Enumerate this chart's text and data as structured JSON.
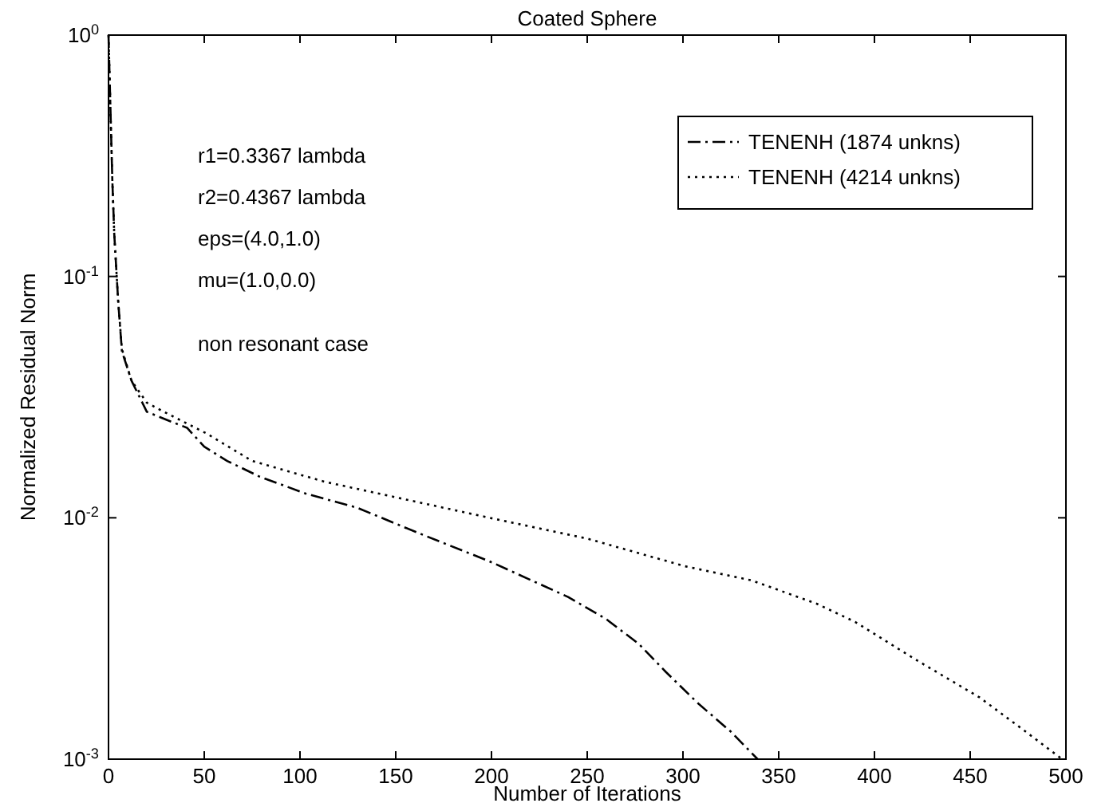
{
  "chart_data": {
    "type": "line",
    "title": "Coated Sphere",
    "xlabel": "Number of Iterations",
    "ylabel": "Normalized Residual Norm",
    "log": "y",
    "xlim": [
      0,
      500
    ],
    "xticks": [
      0,
      50,
      100,
      150,
      200,
      250,
      300,
      350,
      400,
      450,
      500
    ],
    "ylim": [
      0.001,
      1
    ],
    "yticks": [
      {
        "value": 1,
        "label": "10$^{0}$"
      },
      {
        "value": 0.1,
        "label": "10$^{-1}$"
      },
      {
        "value": 0.01,
        "label": "10$^{-2}$"
      },
      {
        "value": 0.001,
        "label": "10$^{-3}$"
      }
    ],
    "grid": false,
    "legend": "top right",
    "marker": "none",
    "annotations": [
      "r1=0.3367 lambda",
      "r2=0.4367 lambda",
      "eps=(4.0,1.0)",
      "mu=(1.0,0.0)",
      "non resonant case"
    ],
    "series": [
      {
        "name": "TENENH (1874 unkns)",
        "color": "#000000",
        "line_style": "dashdot",
        "x": [
          0,
          1,
          2,
          3,
          5,
          7,
          12,
          20,
          34,
          41,
          50,
          62,
          79,
          103,
          130,
          161,
          199,
          240,
          260,
          277,
          291,
          308,
          325,
          339
        ],
        "values": [
          1,
          0.5,
          0.25,
          0.15,
          0.08,
          0.049,
          0.037,
          0.0275,
          0.0248,
          0.0236,
          0.0197,
          0.0172,
          0.0148,
          0.0126,
          0.011,
          0.0087,
          0.0066,
          0.0047,
          0.0038,
          0.003,
          0.0023,
          0.0017,
          0.0013,
          0.001
        ]
      },
      {
        "name": "TENENH (4214 unkns)",
        "color": "#000000",
        "line_style": "dotted",
        "x": [
          0,
          1,
          2,
          3,
          5,
          7,
          12,
          20,
          27,
          51,
          75,
          113,
          164,
          199,
          250,
          301,
          336,
          370,
          390,
          421,
          455,
          479,
          498
        ],
        "values": [
          1,
          0.5,
          0.25,
          0.15,
          0.08,
          0.05,
          0.037,
          0.03,
          0.028,
          0.0224,
          0.0172,
          0.0141,
          0.0115,
          0.01,
          0.0082,
          0.0063,
          0.0055,
          0.0044,
          0.0037,
          0.0026,
          0.0018,
          0.0013,
          0.001
        ]
      }
    ]
  }
}
